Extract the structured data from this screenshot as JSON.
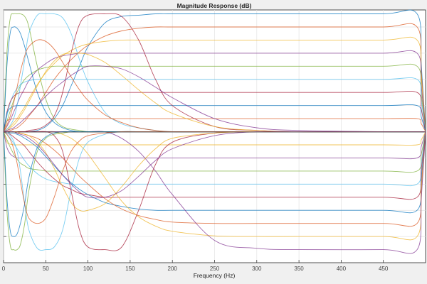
{
  "chart_data": {
    "type": "line",
    "title": "Magnitude Response (dB)",
    "xlabel": "Frequency (Hz)",
    "ylabel": "",
    "xlim": [
      0,
      500
    ],
    "ylim": [
      -10,
      9.3
    ],
    "xticks": [
      0,
      50,
      100,
      150,
      200,
      250,
      300,
      350,
      400,
      450
    ],
    "xtick_labels": [
      "0",
      "50",
      "100",
      "150",
      "200",
      "250",
      "300",
      "350",
      "400",
      "450"
    ],
    "yticks": [
      -8,
      -6,
      -4,
      -2,
      0,
      2,
      4,
      6,
      8
    ],
    "grid": true,
    "colors": [
      "#0072BD",
      "#D95319",
      "#EDB120",
      "#7E2F8E",
      "#77AC30",
      "#4DBEEE",
      "#A2142F"
    ],
    "x": [
      0,
      4,
      8,
      12,
      16,
      20,
      25,
      30,
      40,
      50,
      60,
      70,
      80,
      90,
      100,
      120,
      140,
      160,
      180,
      200,
      250,
      300,
      350,
      450,
      490,
      495,
      500
    ],
    "series": [
      {
        "values": [
          0,
          0,
          0,
          0,
          0,
          0,
          0,
          0,
          0.1,
          0.4,
          1,
          2,
          3.5,
          5,
          6.5,
          8.3,
          8.8,
          8.9,
          9,
          9,
          9,
          9,
          9,
          9,
          9,
          5,
          0
        ]
      },
      {
        "values": [
          0,
          0,
          0.1,
          0.2,
          0.3,
          0.5,
          0.8,
          1.2,
          2,
          3,
          4,
          4.8,
          5.5,
          6.1,
          6.6,
          7.3,
          7.7,
          7.9,
          8,
          8,
          8,
          8,
          8,
          8,
          8,
          4.5,
          0
        ]
      },
      {
        "values": [
          0,
          0.2,
          0.4,
          0.7,
          1,
          1.4,
          1.9,
          2.5,
          3.6,
          4.5,
          5.2,
          5.8,
          6.2,
          6.5,
          6.7,
          6.9,
          7,
          7,
          7,
          7,
          7,
          7,
          7,
          7,
          7,
          4,
          0
        ]
      },
      {
        "values": [
          0,
          0.4,
          0.9,
          1.5,
          2.1,
          2.7,
          3.3,
          3.9,
          4.7,
          5.2,
          5.6,
          5.8,
          5.9,
          6,
          6,
          6,
          6,
          6,
          6,
          6,
          6,
          6,
          6,
          6,
          6,
          3.4,
          0
        ]
      },
      {
        "values": [
          0,
          0.8,
          1.6,
          2.4,
          3,
          3.5,
          4,
          4.3,
          4.7,
          4.9,
          5,
          5,
          5,
          5,
          5,
          5,
          5,
          5,
          5,
          5,
          5,
          5,
          5,
          5,
          5,
          2.8,
          0
        ]
      },
      {
        "values": [
          0,
          1.2,
          2.2,
          2.9,
          3.3,
          3.6,
          3.8,
          3.9,
          4,
          4,
          4,
          4,
          4,
          4,
          4,
          4,
          4,
          4,
          4,
          4,
          4,
          4,
          4,
          4,
          4,
          2.3,
          0
        ]
      },
      {
        "values": [
          0,
          1.5,
          2.3,
          2.7,
          2.9,
          3,
          3,
          3,
          3,
          3,
          3,
          3,
          3,
          3,
          3,
          3,
          3,
          3,
          3,
          3,
          3,
          3,
          3,
          3,
          3,
          1.7,
          0
        ]
      },
      {
        "values": [
          0,
          1.4,
          1.8,
          1.95,
          2,
          2,
          2,
          2,
          2,
          2,
          2,
          2,
          2,
          2,
          2,
          2,
          2,
          2,
          2,
          2,
          2,
          2,
          2,
          2,
          2,
          1.1,
          0
        ]
      },
      {
        "values": [
          0,
          0.8,
          0.95,
          1,
          1,
          1,
          1,
          1,
          1,
          1,
          1,
          1,
          1,
          1,
          1,
          1,
          1,
          1,
          1,
          1,
          1,
          1,
          1,
          1,
          1,
          0.6,
          0
        ]
      },
      {
        "values": [
          0,
          -0.8,
          -0.95,
          -1,
          -1,
          -1,
          -1,
          -1,
          -1,
          -1,
          -1,
          -1,
          -1,
          -1,
          -1,
          -1,
          -1,
          -1,
          -1,
          -1,
          -1,
          -1,
          -1,
          -1,
          -1,
          -0.6,
          0
        ]
      },
      {
        "values": [
          0,
          -1.2,
          -1.7,
          -1.9,
          -2,
          -2,
          -2,
          -2,
          -2,
          -2,
          -2,
          -2,
          -2,
          -2,
          -2,
          -2,
          -2,
          -2,
          -2,
          -2,
          -2,
          -2,
          -2,
          -2,
          -2,
          -1.1,
          0
        ]
      },
      {
        "values": [
          0,
          -0.6,
          -1.2,
          -1.7,
          -2.1,
          -2.4,
          -2.6,
          -2.8,
          -2.9,
          -3,
          -3,
          -3,
          -3,
          -3,
          -3,
          -3,
          -3,
          -3,
          -3,
          -3,
          -3,
          -3,
          -3,
          -3,
          -3,
          -1.7,
          0
        ]
      },
      {
        "values": [
          0,
          -0.2,
          -0.5,
          -0.9,
          -1.3,
          -1.7,
          -2.2,
          -2.6,
          -3.2,
          -3.6,
          -3.8,
          -3.9,
          -4,
          -4,
          -4,
          -4,
          -4,
          -4,
          -4,
          -4,
          -4,
          -4,
          -4,
          -4,
          -4,
          -2.3,
          0
        ]
      },
      {
        "values": [
          0,
          -0.1,
          -0.2,
          -0.4,
          -0.6,
          -0.8,
          -1.1,
          -1.5,
          -2.3,
          -3,
          -3.6,
          -4.1,
          -4.4,
          -4.7,
          -4.8,
          -5,
          -5,
          -5,
          -5,
          -5,
          -5,
          -5,
          -5,
          -5,
          -5,
          -2.8,
          0
        ]
      },
      {
        "values": [
          0,
          0,
          -0.1,
          -0.1,
          -0.2,
          -0.3,
          -0.5,
          -0.7,
          -1.2,
          -1.9,
          -2.6,
          -3.3,
          -3.9,
          -4.4,
          -4.8,
          -5.4,
          -5.7,
          -5.9,
          -6,
          -6,
          -6,
          -6,
          -6,
          -6,
          -6,
          -3.4,
          0
        ]
      },
      {
        "values": [
          0,
          0,
          0,
          0,
          -0.1,
          -0.1,
          -0.2,
          -0.3,
          -0.5,
          -0.9,
          -1.4,
          -2,
          -2.7,
          -3.4,
          -4,
          -5.1,
          -5.9,
          -6.4,
          -6.7,
          -6.9,
          -7,
          -7,
          -7,
          -7,
          -7,
          -4,
          0
        ]
      },
      {
        "values": [
          0,
          0,
          0,
          0,
          0,
          0,
          0,
          0,
          0,
          0,
          0,
          -0.2,
          -0.5,
          -1,
          -1.7,
          -3.5,
          -5.3,
          -6.5,
          -7.2,
          -7.6,
          -7.95,
          -8,
          -8,
          -8,
          -8,
          -4.5,
          0
        ]
      },
      {
        "values": [
          0,
          0,
          0,
          0,
          0,
          0,
          0,
          0,
          0,
          0,
          0,
          0,
          0,
          0,
          0,
          0,
          -0.5,
          -1.5,
          -3,
          -4.8,
          -8.3,
          -8.9,
          -9,
          -9,
          -9,
          -5,
          0
        ]
      },
      {
        "values": [
          0,
          6,
          8.7,
          9,
          9,
          9,
          8.8,
          8,
          5,
          2.5,
          1,
          0.4,
          0.2,
          0.1,
          0,
          0,
          0,
          0,
          0,
          0,
          0,
          0,
          0,
          0,
          0,
          0,
          0
        ]
      },
      {
        "values": [
          0,
          0.2,
          0.5,
          1,
          2,
          3.5,
          5.5,
          7.5,
          8.9,
          9,
          9,
          8.7,
          7.5,
          5.5,
          3.8,
          1.5,
          0.6,
          0.3,
          0.1,
          0,
          0,
          0,
          0,
          0,
          0,
          0,
          0
        ]
      },
      {
        "values": [
          0,
          0,
          0,
          0,
          0,
          0,
          0,
          0.1,
          0.2,
          0.5,
          1.2,
          3,
          6,
          8.2,
          8.9,
          9,
          8.8,
          7,
          4,
          2,
          0.4,
          0.1,
          0,
          0,
          0,
          0,
          0
        ]
      },
      {
        "values": [
          0,
          5,
          7.6,
          8,
          7.9,
          7.5,
          6.5,
          5.3,
          3,
          1.5,
          0.7,
          0.3,
          0.1,
          0,
          0,
          0,
          0,
          0,
          0,
          0,
          0,
          0,
          0,
          0,
          0,
          0,
          0
        ]
      },
      {
        "values": [
          0,
          0.5,
          1.2,
          2.2,
          3.4,
          4.6,
          5.8,
          6.5,
          7,
          6.9,
          6.3,
          5.3,
          4.2,
          3.2,
          2.4,
          1.3,
          0.7,
          0.3,
          0.1,
          0,
          0,
          0,
          0,
          0,
          0,
          0,
          0
        ]
      },
      {
        "values": [
          0,
          0.1,
          0.3,
          0.5,
          0.8,
          1.2,
          1.7,
          2.3,
          3.5,
          4.6,
          5.4,
          5.9,
          6,
          6,
          5.9,
          5.3,
          4.3,
          3.2,
          2.2,
          1.4,
          0.4,
          0.1,
          0,
          0,
          0,
          0,
          0
        ]
      },
      {
        "values": [
          0,
          0.1,
          0.2,
          0.3,
          0.5,
          0.7,
          1,
          1.3,
          2,
          2.7,
          3.3,
          3.8,
          4.3,
          4.7,
          5,
          5,
          4.8,
          4.2,
          3.4,
          2.6,
          1,
          0.3,
          0.1,
          0,
          0,
          0,
          0
        ]
      },
      {
        "values": [
          0,
          -6,
          -8.7,
          -9,
          -9,
          -8.6,
          -7,
          -4.5,
          -1.5,
          -0.5,
          -0.2,
          -0.1,
          0,
          0,
          0,
          0,
          0,
          0,
          0,
          0,
          0,
          0,
          0,
          0,
          0,
          0,
          0
        ]
      },
      {
        "values": [
          0,
          -0.1,
          -0.3,
          -0.7,
          -1.5,
          -3,
          -5.5,
          -7.5,
          -8.9,
          -9,
          -8.8,
          -7.5,
          -4.5,
          -2,
          -0.8,
          -0.2,
          0,
          0,
          0,
          0,
          0,
          0,
          0,
          0,
          0,
          0,
          0
        ]
      },
      {
        "values": [
          0,
          0,
          0,
          0,
          0,
          0,
          0,
          0,
          0,
          0,
          -0.3,
          -1.5,
          -4.5,
          -7.5,
          -8.8,
          -9,
          -8.8,
          -6,
          -2.5,
          -0.8,
          -0.1,
          0,
          0,
          0,
          0,
          0,
          0
        ]
      },
      {
        "values": [
          0,
          -5,
          -7.6,
          -8,
          -7.8,
          -7,
          -5.5,
          -3.5,
          -1.2,
          -0.4,
          -0.1,
          0,
          0,
          0,
          0,
          0,
          0,
          0,
          0,
          0,
          0,
          0,
          0,
          0,
          0,
          0,
          0
        ]
      },
      {
        "values": [
          0,
          -0.2,
          -0.6,
          -1.3,
          -2.4,
          -3.8,
          -5.5,
          -6.6,
          -7,
          -6.6,
          -5,
          -3,
          -1.5,
          -0.7,
          -0.3,
          -0.1,
          0,
          0,
          0,
          0,
          0,
          0,
          0,
          0,
          0,
          0,
          0
        ]
      },
      {
        "values": [
          0,
          0,
          0,
          0,
          0,
          -0.1,
          -0.2,
          -0.3,
          -0.8,
          -1.6,
          -2.8,
          -4.2,
          -5.4,
          -6,
          -6,
          -5.5,
          -4.2,
          -2.6,
          -1.3,
          -0.5,
          -0.1,
          0,
          0,
          0,
          0,
          0,
          0
        ]
      },
      {
        "values": [
          0,
          0,
          0,
          0,
          -0.1,
          -0.2,
          -0.3,
          -0.5,
          -1,
          -1.7,
          -2.5,
          -3.3,
          -4,
          -4.6,
          -5,
          -5,
          -4.5,
          -3.4,
          -2.2,
          -1.3,
          -0.3,
          0,
          0,
          0,
          0,
          0,
          0
        ]
      }
    ]
  }
}
